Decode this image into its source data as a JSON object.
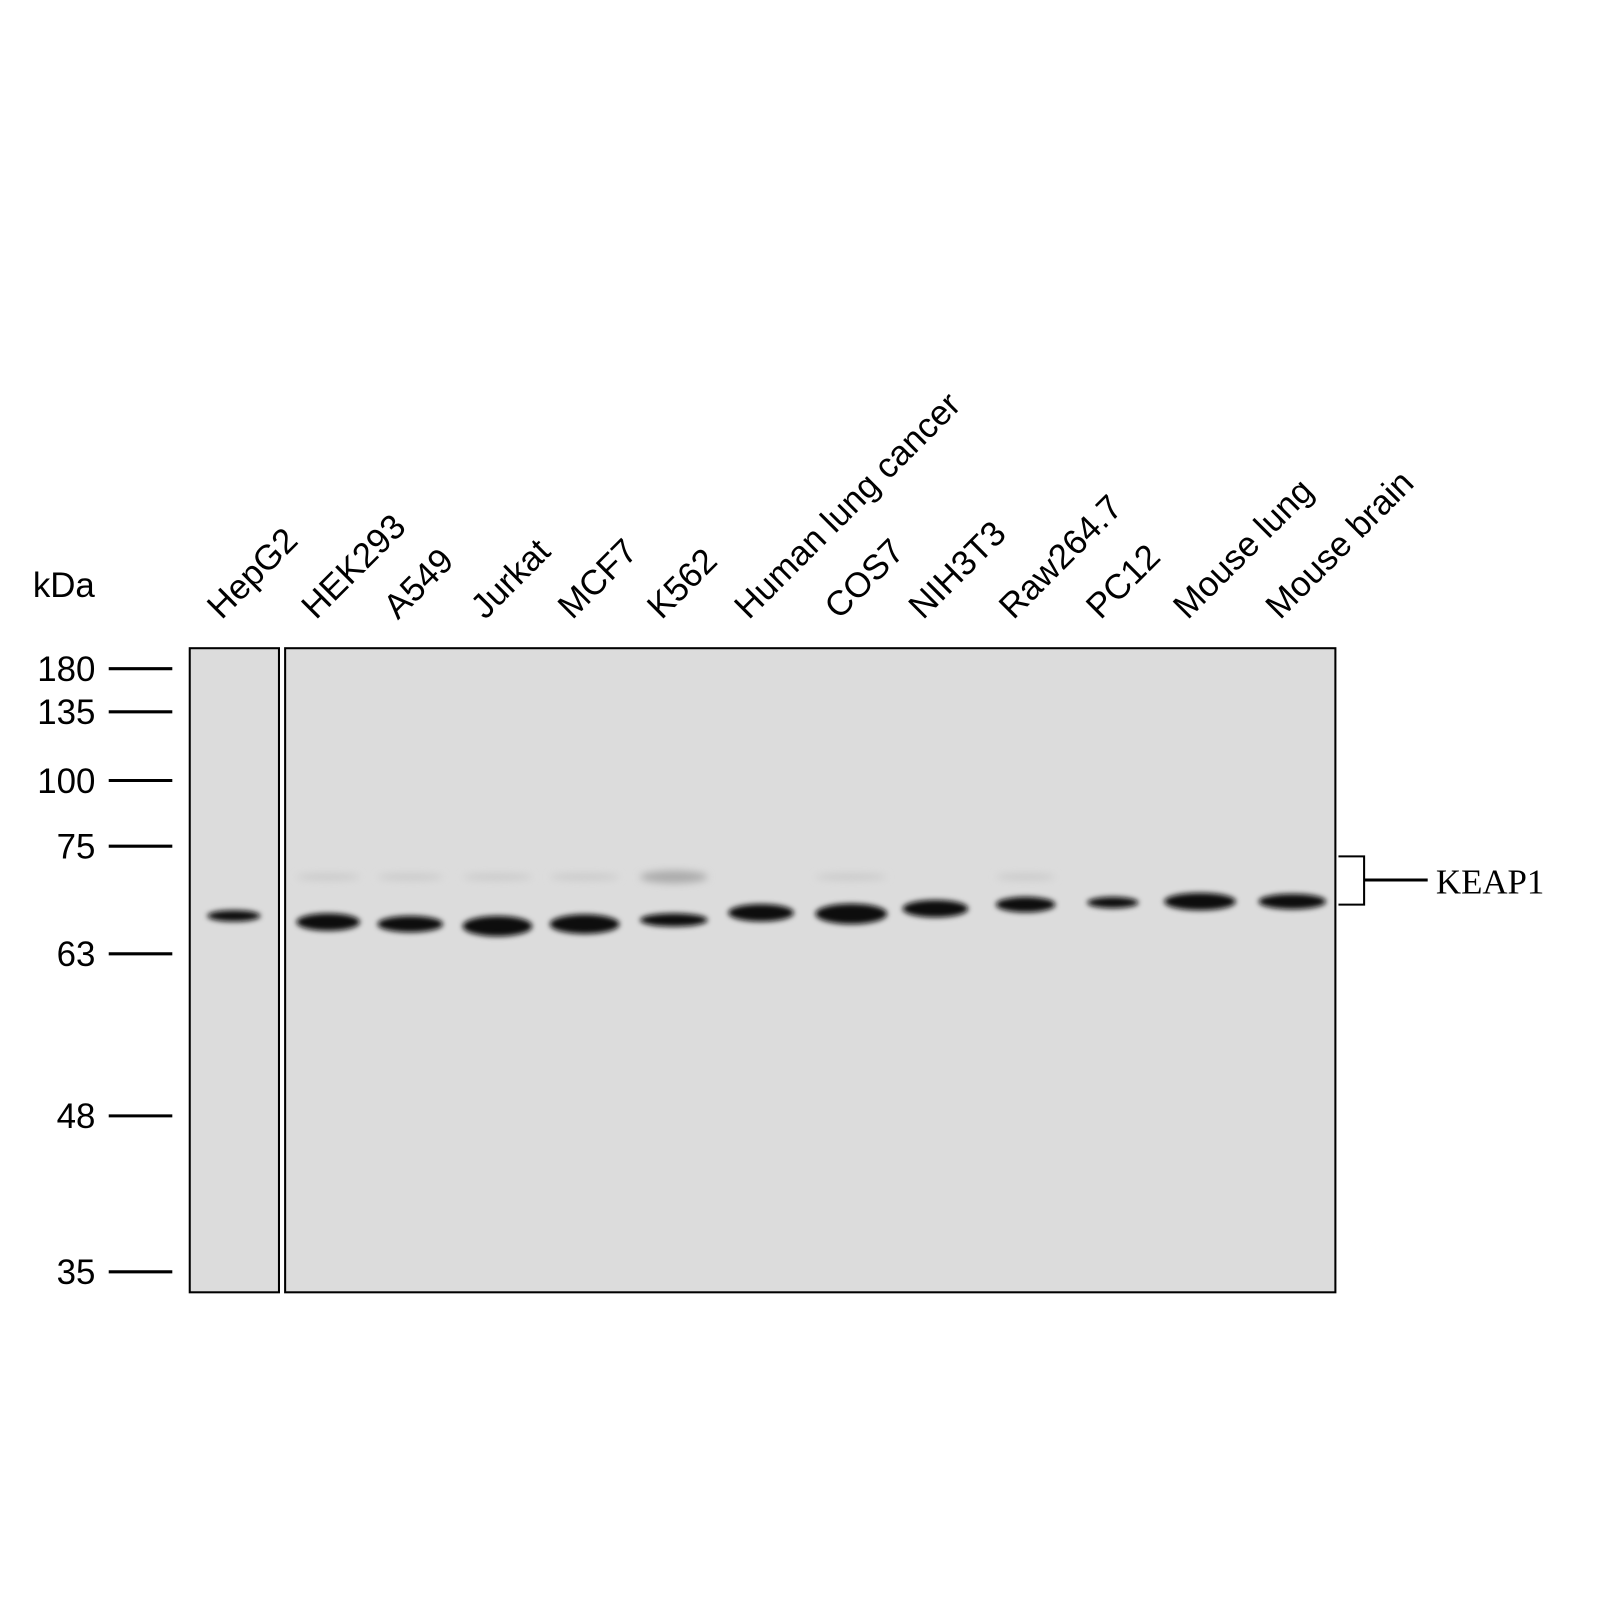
{
  "unit_label": "kDa",
  "lanes": [
    "HepG2",
    "HEK293",
    "A549",
    "Jurkat",
    "MCF7",
    "K562",
    "Human lung cancer",
    "COS7",
    "NIH3T3",
    "Raw264.7",
    "PC12",
    "Mouse lung",
    "Mouse brain"
  ],
  "markers": [
    180,
    135,
    100,
    75,
    63,
    48,
    35
  ],
  "target": "KEAP1"
}
